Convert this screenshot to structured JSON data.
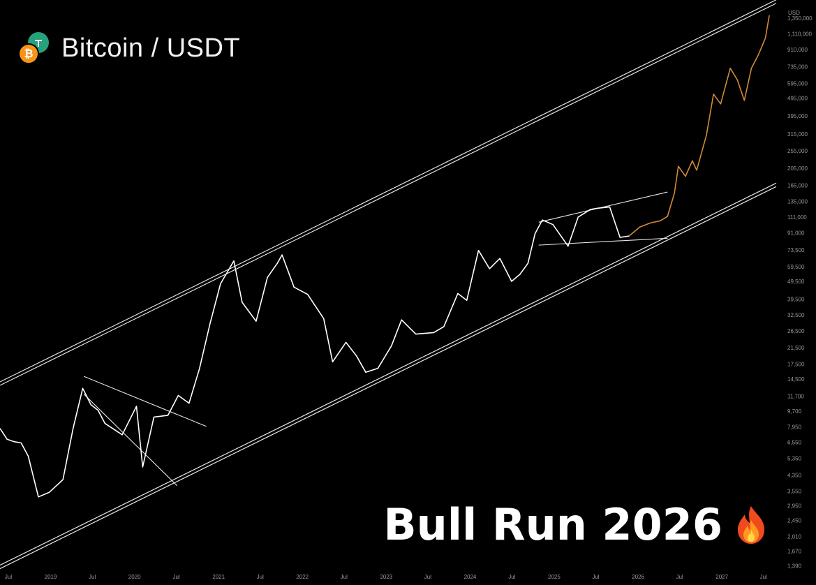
{
  "header": {
    "title": "Bitcoin / USDT",
    "btc_icon": "bitcoin-coin-icon",
    "usdt_icon": "tether-coin-icon",
    "btc_symbol": "₿"
  },
  "annotation": {
    "text": "Bull Run 2026",
    "icon": "fire-icon"
  },
  "colors": {
    "background": "#000000",
    "price_history": "#ffffff",
    "price_projection": "#d38a3a",
    "channel_lines": "#e6e6e6",
    "axis_text": "#9a9a9a"
  },
  "chart_data": {
    "type": "line",
    "title": "Bitcoin / USDT",
    "ylabel": "USD",
    "yscale": "log",
    "ylim": [
      1300,
      1500000
    ],
    "xlim": [
      "2018-07-01",
      "2027-10-01"
    ],
    "y_ticks": [
      "1,350,000",
      "1,110,000",
      "910,000",
      "735,000",
      "595,000",
      "495,000",
      "395,000",
      "315,000",
      "255,000",
      "205,000",
      "165,000",
      "135,000",
      "111,000",
      "91,000",
      "73,500",
      "59,500",
      "49,500",
      "39,500",
      "32,500",
      "26,500",
      "21,500",
      "17,500",
      "14,500",
      "11,700",
      "9,700",
      "7,950",
      "6,550",
      "5,350",
      "4,350",
      "3,550",
      "2,950",
      "2,450",
      "2,010",
      "1,670",
      "1,390"
    ],
    "x_ticks": [
      "Jul",
      "2019",
      "Jul",
      "2020",
      "Jul",
      "2021",
      "Jul",
      "2022",
      "Jul",
      "2023",
      "Jul",
      "2024",
      "Jul",
      "2025",
      "Jul",
      "2026",
      "Jul",
      "2027",
      "Jul"
    ],
    "series": [
      {
        "x": [
          "2018-07-01",
          "2018-08-01",
          "2018-09-01",
          "2018-10-01",
          "2018-11-01",
          "2018-12-15",
          "2019-02-01",
          "2019-04-01",
          "2019-05-15",
          "2019-06-26",
          "2019-08-01",
          "2019-09-01",
          "2019-10-01",
          "2019-12-15",
          "2020-02-15",
          "2020-03-13",
          "2020-05-01",
          "2020-07-01",
          "2020-08-15",
          "2020-10-01",
          "2020-11-15",
          "2020-12-31",
          "2021-02-15",
          "2021-04-14",
          "2021-05-20",
          "2021-07-20",
          "2021-09-07",
          "2021-10-20",
          "2021-11-10",
          "2022-01-01",
          "2022-03-01",
          "2022-05-10",
          "2022-06-18",
          "2022-08-15",
          "2022-09-30",
          "2022-11-09",
          "2023-01-01",
          "2023-03-01",
          "2023-04-14",
          "2023-06-15",
          "2023-09-01",
          "2023-10-15",
          "2023-12-15",
          "2024-01-23",
          "2024-03-14",
          "2024-05-01",
          "2024-06-15",
          "2024-08-05",
          "2024-09-10",
          "2024-10-15",
          "2024-11-15",
          "2024-12-17",
          "2025-02-01",
          "2025-04-08",
          "2025-05-22",
          "2025-07-14",
          "2025-08-14",
          "2025-10-06",
          "2025-11-20",
          "2025-12-31"
        ],
        "values": [
          7800,
          6800,
          6600,
          6500,
          5500,
          3300,
          3500,
          4100,
          7800,
          12900,
          10500,
          9800,
          8300,
          7200,
          10300,
          4800,
          9000,
          9200,
          11800,
          10700,
          16500,
          29000,
          48000,
          64000,
          38000,
          30000,
          52000,
          62000,
          69000,
          46000,
          42000,
          31000,
          18000,
          23000,
          19400,
          15800,
          16600,
          22000,
          30500,
          25500,
          26000,
          28000,
          42500,
          39000,
          73000,
          58000,
          66000,
          49500,
          54000,
          62000,
          90000,
          107000,
          101000,
          77000,
          111000,
          122000,
          124000,
          126000,
          86000,
          87500
        ]
      },
      {
        "x": [
          "2026-01-01",
          "2026-02-15",
          "2026-04-01",
          "2026-05-15",
          "2026-06-15",
          "2026-07-15",
          "2026-08-01",
          "2026-09-01",
          "2026-10-01",
          "2026-10-20",
          "2026-12-01",
          "2027-01-01",
          "2027-02-01",
          "2027-03-15",
          "2027-04-15",
          "2027-05-15",
          "2027-06-15",
          "2027-07-15",
          "2027-08-15",
          "2027-09-01"
        ],
        "values": [
          88000,
          98000,
          103000,
          106000,
          112000,
          150000,
          210000,
          185000,
          225000,
          200000,
          310000,
          520000,
          460000,
          720000,
          620000,
          480000,
          720000,
          850000,
          1050000,
          1400000
        ]
      }
    ],
    "channels": [
      {
        "x": [
          "2018-07-01",
          "2027-10-01"
        ],
        "values": [
          14000,
          1700000
        ]
      },
      {
        "x": [
          "2018-07-01",
          "2027-10-01"
        ],
        "values": [
          1400,
          170000
        ]
      }
    ],
    "patterns": [
      {
        "x": [
          "2019-07-01",
          "2020-12-15"
        ],
        "values": [
          15000,
          8000
        ]
      },
      {
        "x": [
          "2019-07-01",
          "2020-08-10"
        ],
        "values": [
          12000,
          3800
        ]
      },
      {
        "x": [
          "2024-12-01",
          "2026-06-15"
        ],
        "values": [
          104000,
          152000
        ]
      },
      {
        "x": [
          "2024-12-01",
          "2026-06-15"
        ],
        "values": [
          78000,
          85000
        ]
      }
    ],
    "grid": false,
    "legend": "none"
  }
}
